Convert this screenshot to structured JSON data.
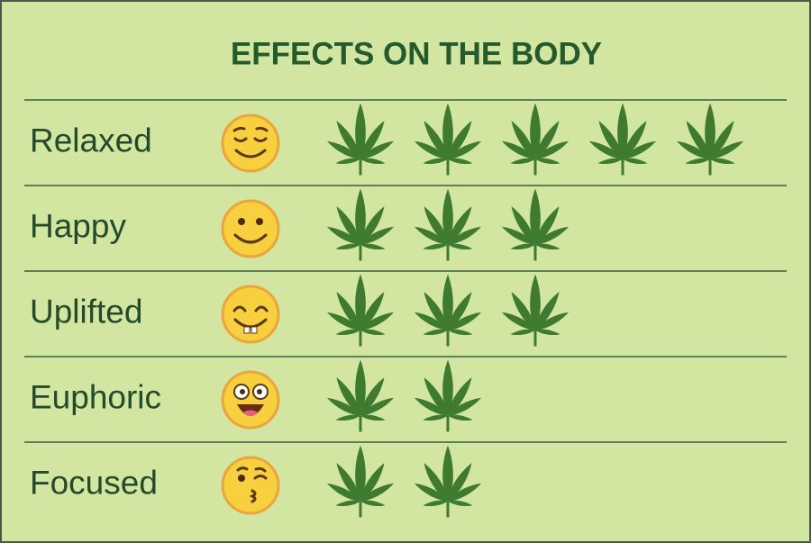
{
  "chart_data": {
    "type": "pictograph",
    "title": "EFFECTS ON THE BODY",
    "categories": [
      "Relaxed",
      "Happy",
      "Uplifted",
      "Euphoric",
      "Focused"
    ],
    "values": [
      5,
      3,
      3,
      2,
      2
    ],
    "color": "#3f7a31"
  }
}
